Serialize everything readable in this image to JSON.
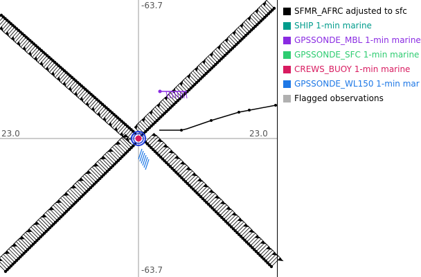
{
  "axes": {
    "top": "-63.7",
    "bottom": "-63.7",
    "left": "23.0",
    "right": "23.0"
  },
  "legend": [
    {
      "label": "SFMR_AFRC adjusted to sfc",
      "color": "#000000",
      "text_color": "#000000"
    },
    {
      "label": "SHIP 1-min marine",
      "color": "#009c8c",
      "text_color": "#009c8c"
    },
    {
      "label": "GPSSONDE_MBL 1-min marine",
      "color": "#8a2be2",
      "text_color": "#8a2be2"
    },
    {
      "label": "GPSSONDE_SFC 1-min marine",
      "color": "#2ecc71",
      "text_color": "#2ecc71"
    },
    {
      "label": "CREWS_BUOY 1-min marine",
      "color": "#d81b60",
      "text_color": "#d81b60"
    },
    {
      "label": "GPSSONDE_WL150 1-min mar",
      "color": "#1e78e6",
      "text_color": "#1e78e6"
    },
    {
      "label": "Flagged observations",
      "color": "#b0b0b0",
      "text_color": "#000000"
    }
  ]
}
